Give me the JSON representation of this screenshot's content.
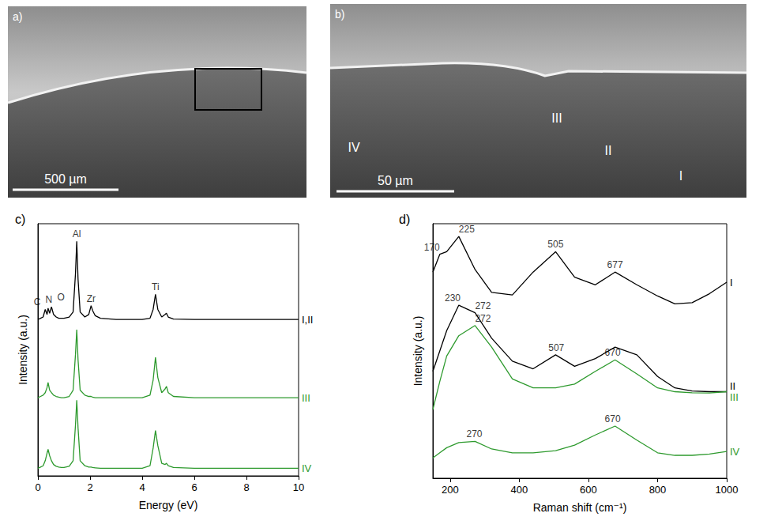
{
  "images": [
    {
      "title": "a)",
      "scale_bar": "500 µm",
      "regions": []
    },
    {
      "title": "b)",
      "scale_bar": "50 µm",
      "regions": [
        "IV",
        "III",
        "II",
        "I"
      ]
    }
  ],
  "chart_data": [
    {
      "type": "line",
      "title": "c)",
      "xlabel": "Energy (eV)",
      "ylabel": "Intensity (a.u.)",
      "x": [
        0,
        0.1,
        0.2,
        0.28,
        0.35,
        0.39,
        0.45,
        0.52,
        0.6,
        0.7,
        0.8,
        0.9,
        1.0,
        1.2,
        1.35,
        1.44,
        1.49,
        1.54,
        1.62,
        1.8,
        1.95,
        2.04,
        2.1,
        2.2,
        2.4,
        3.0,
        3.5,
        4.0,
        4.3,
        4.42,
        4.51,
        4.6,
        4.75,
        4.88,
        4.93,
        5.0,
        5.2,
        6,
        7,
        8,
        9,
        10
      ],
      "xlim": [
        0,
        10
      ],
      "xticks": [
        0,
        2,
        4,
        6,
        8,
        10
      ],
      "ylim": [
        0,
        100
      ],
      "tick_labels": "x",
      "grid": false,
      "series": [
        {
          "name": "I,II",
          "color": "#000000",
          "values": [
            62,
            62.5,
            63,
            66,
            64,
            66.5,
            64.5,
            67,
            64,
            63,
            62.5,
            62.5,
            62.5,
            63,
            65,
            80,
            93,
            78,
            65,
            63,
            64,
            67.5,
            65.5,
            63.5,
            62.5,
            62,
            62,
            62,
            62.5,
            66,
            72,
            66,
            63,
            64,
            64.5,
            63,
            62.2,
            62,
            62,
            62,
            62,
            62
          ]
        },
        {
          "name": "III",
          "color": "#2e9a2e",
          "values": [
            31,
            31.5,
            32,
            33,
            35,
            37,
            34,
            33,
            32,
            31.5,
            31.2,
            31,
            31,
            31.5,
            34,
            48,
            58,
            46,
            34,
            32,
            31.5,
            31.5,
            31.2,
            31,
            31,
            31,
            31,
            31,
            32,
            38,
            47,
            39,
            33,
            34.5,
            35.5,
            33,
            31.5,
            31,
            31,
            31,
            31,
            31
          ]
        },
        {
          "name": "IV",
          "color": "#2e9a2e",
          "values": [
            3,
            3.5,
            4,
            6,
            9,
            10.5,
            8,
            6,
            4.5,
            3.8,
            3.5,
            3.3,
            3.3,
            3.8,
            6,
            20,
            30,
            19,
            6,
            4,
            3.5,
            3.5,
            3.3,
            3.2,
            3,
            3,
            3,
            3,
            4,
            11,
            18,
            12,
            5,
            4.5,
            5,
            4,
            3.3,
            3,
            3,
            3,
            3,
            3
          ]
        }
      ],
      "annotations": [
        {
          "text": "C",
          "x": 0.1,
          "y": 66
        },
        {
          "text": "N",
          "x": 0.42,
          "y": 67
        },
        {
          "text": "O",
          "x": 0.74,
          "y": 68
        },
        {
          "text": "Al",
          "x": 1.49,
          "y": 93
        },
        {
          "text": "Zr",
          "x": 2.04,
          "y": 67.5
        },
        {
          "text": "Ti",
          "x": 4.51,
          "y": 72
        }
      ]
    },
    {
      "type": "line",
      "title": "d)",
      "xlabel": "Raman shift (cm⁻¹)",
      "ylabel": "Intensity (a.u.)",
      "x": [
        150,
        170,
        190,
        225,
        272,
        320,
        380,
        440,
        505,
        560,
        620,
        677,
        740,
        800,
        850,
        900,
        950,
        1000
      ],
      "xlim": [
        150,
        1000
      ],
      "xticks": [
        200,
        400,
        600,
        800,
        1000
      ],
      "ylim": [
        0,
        100
      ],
      "tick_labels": "x",
      "grid": false,
      "series": [
        {
          "name": "I",
          "color": "#000000",
          "values": [
            81,
            88,
            89,
            95,
            82,
            73,
            72,
            81,
            89,
            79,
            76,
            81,
            76,
            71.6,
            68.5,
            69,
            72.5,
            77
          ]
        },
        {
          "name": "II",
          "color": "#000000",
          "values": [
            42,
            50,
            58,
            68,
            65,
            55,
            46,
            43,
            48.5,
            44,
            47,
            51.5,
            48.5,
            40,
            35.5,
            34.3,
            34,
            34
          ]
        },
        {
          "name": "III",
          "color": "#2e9a2e",
          "values": [
            27,
            38,
            48,
            56,
            60,
            51.5,
            39,
            35.5,
            35.5,
            37,
            42,
            46.5,
            41,
            35.5,
            34,
            33.6,
            33.5,
            34
          ]
        },
        {
          "name": "IV",
          "color": "#2e9a2e",
          "values": [
            8,
            10,
            12,
            14,
            14.5,
            11.5,
            10,
            10,
            10.8,
            13,
            17,
            20.5,
            15,
            10,
            9,
            9,
            9.5,
            10.5
          ]
        }
      ],
      "annotations": [
        {
          "text": "170",
          "x": 170,
          "y": 88
        },
        {
          "text": "225",
          "x": 225,
          "y": 95
        },
        {
          "text": "505",
          "x": 505,
          "y": 89
        },
        {
          "text": "677",
          "x": 677,
          "y": 81
        },
        {
          "text": "230",
          "x": 230,
          "y": 68
        },
        {
          "text": "272",
          "x": 272,
          "y": 65
        },
        {
          "text": "507",
          "x": 507,
          "y": 48.5
        },
        {
          "text": "272",
          "x": 272,
          "y": 60
        },
        {
          "text": "670",
          "x": 670,
          "y": 46.5
        },
        {
          "text": "270",
          "x": 270,
          "y": 14.5
        },
        {
          "text": "670",
          "x": 670,
          "y": 20.5
        }
      ]
    }
  ]
}
